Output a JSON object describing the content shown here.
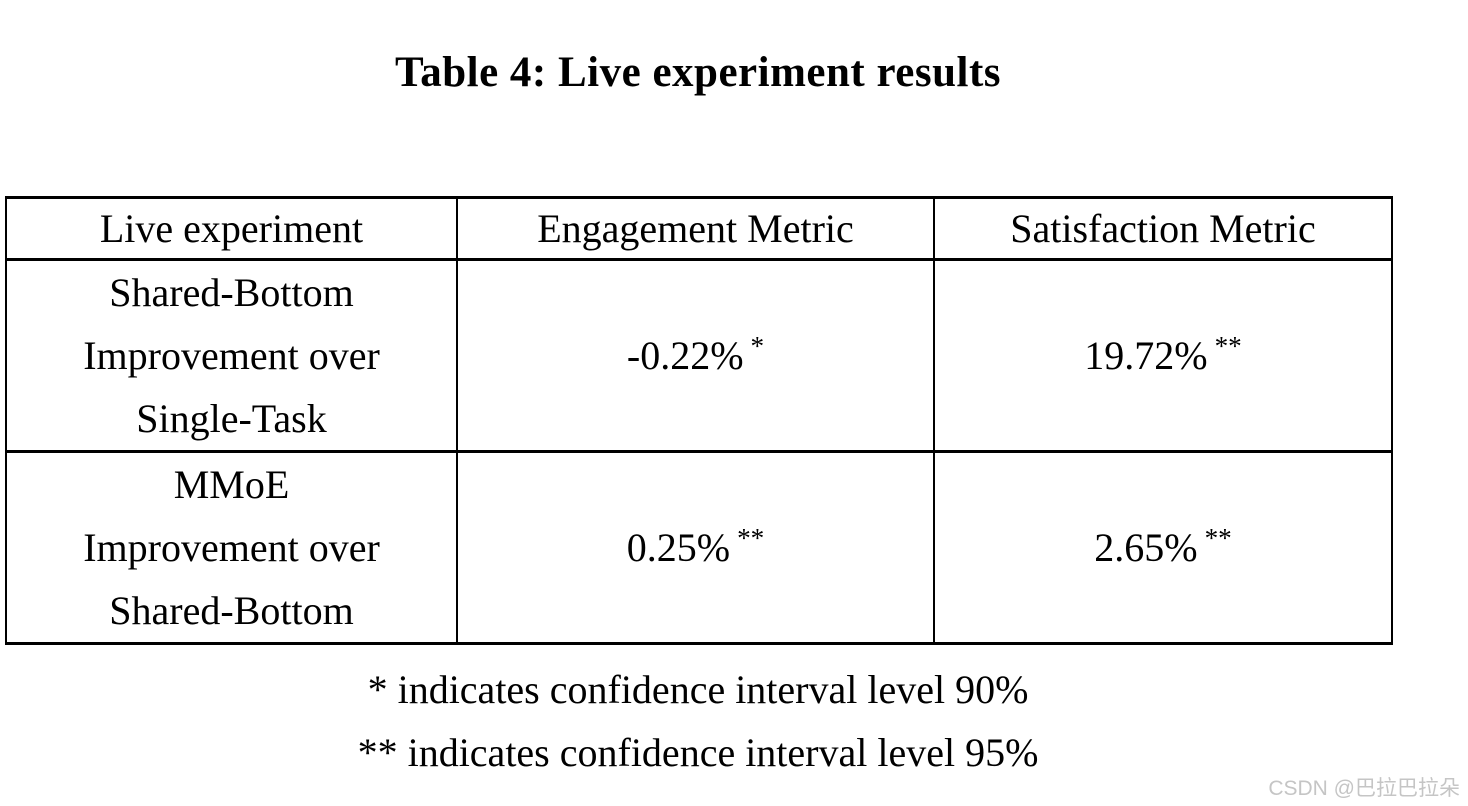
{
  "page": {
    "title": "Table 4: Live experiment results"
  },
  "table": {
    "columns": [
      "Live experiment",
      "Engagement Metric",
      "Satisfaction Metric"
    ],
    "rows": [
      {
        "label": "Shared-Bottom\nImprovement over\nSingle-Task",
        "engagement": {
          "value": "-0.22%",
          "stars": "*"
        },
        "satisfaction": {
          "value": "19.72%",
          "stars": "**"
        }
      },
      {
        "label": "MMoE\nImprovement over\nShared-Bottom",
        "engagement": {
          "value": "0.25%",
          "stars": "**"
        },
        "satisfaction": {
          "value": "2.65%",
          "stars": "**"
        }
      }
    ]
  },
  "footnotes": [
    "* indicates confidence interval level 90%",
    "** indicates confidence interval level 95%"
  ],
  "watermark": "CSDN @巴拉巴拉朵",
  "colors": {
    "text": "#000000",
    "border": "#000000",
    "background": "#ffffff",
    "watermark": "#c5c5c5"
  }
}
